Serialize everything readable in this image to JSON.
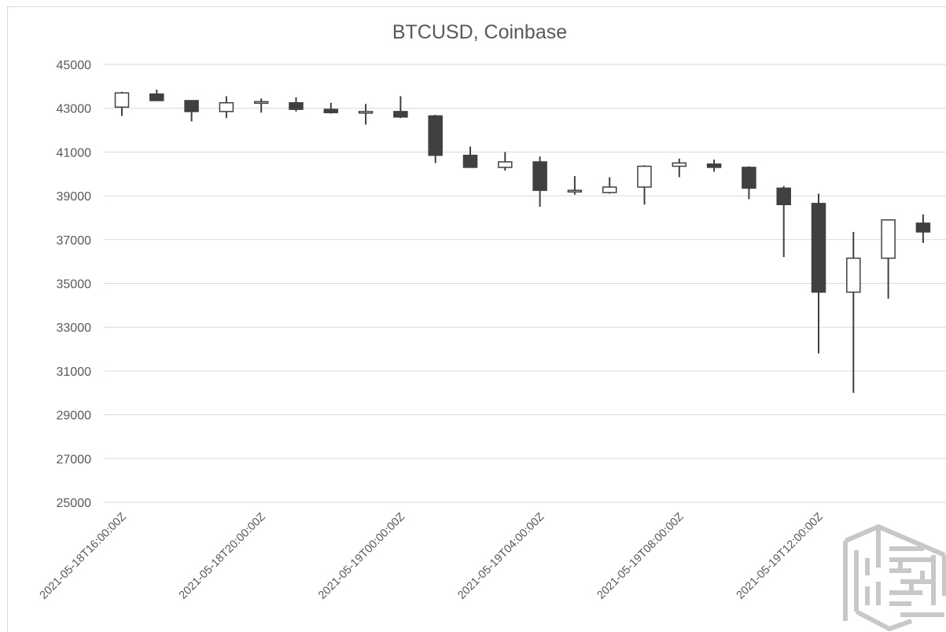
{
  "chart_data": {
    "type": "candlestick",
    "title": "BTCUSD, Coinbase",
    "ylim": [
      25000,
      45000
    ],
    "yticks": [
      25000,
      27000,
      29000,
      31000,
      33000,
      35000,
      37000,
      39000,
      41000,
      43000,
      45000
    ],
    "ytick_labels": [
      "25000",
      "27000",
      "29000",
      "31000",
      "33000",
      "35000",
      "37000",
      "39000",
      "41000",
      "43000",
      "45000"
    ],
    "xtick_labels": [
      {
        "index": 0,
        "label": "2021-05-18T16:00:00Z"
      },
      {
        "index": 4,
        "label": "2021-05-18T20:00:00Z"
      },
      {
        "index": 8,
        "label": "2021-05-19T00:00:00Z"
      },
      {
        "index": 12,
        "label": "2021-05-19T04:00:00Z"
      },
      {
        "index": 16,
        "label": "2021-05-19T08:00:00Z"
      },
      {
        "index": 20,
        "label": "2021-05-19T12:00:00Z"
      }
    ],
    "grid": true,
    "candles": [
      {
        "open": 43050,
        "high": 43750,
        "low": 42650,
        "close": 43700
      },
      {
        "open": 43650,
        "high": 43850,
        "low": 43350,
        "close": 43350
      },
      {
        "open": 43350,
        "high": 43350,
        "low": 42400,
        "close": 42850
      },
      {
        "open": 42850,
        "high": 43550,
        "low": 42550,
        "close": 43250
      },
      {
        "open": 43250,
        "high": 43450,
        "low": 42800,
        "close": 43300
      },
      {
        "open": 43250,
        "high": 43500,
        "low": 42850,
        "close": 42950
      },
      {
        "open": 42950,
        "high": 43250,
        "low": 42750,
        "close": 42800
      },
      {
        "open": 42800,
        "high": 43200,
        "low": 42250,
        "close": 42850
      },
      {
        "open": 42850,
        "high": 43550,
        "low": 42550,
        "close": 42600
      },
      {
        "open": 42650,
        "high": 42700,
        "low": 40500,
        "close": 40850
      },
      {
        "open": 40850,
        "high": 41250,
        "low": 40300,
        "close": 40300
      },
      {
        "open": 40300,
        "high": 41000,
        "low": 40150,
        "close": 40550
      },
      {
        "open": 40550,
        "high": 40800,
        "low": 38500,
        "close": 39250
      },
      {
        "open": 39200,
        "high": 39900,
        "low": 39050,
        "close": 39250
      },
      {
        "open": 39150,
        "high": 39850,
        "low": 39100,
        "close": 39400
      },
      {
        "open": 39400,
        "high": 40400,
        "low": 38600,
        "close": 40350
      },
      {
        "open": 40350,
        "high": 40700,
        "low": 39850,
        "close": 40500
      },
      {
        "open": 40450,
        "high": 40650,
        "low": 40100,
        "close": 40300
      },
      {
        "open": 40300,
        "high": 40350,
        "low": 38850,
        "close": 39350
      },
      {
        "open": 39350,
        "high": 39450,
        "low": 36200,
        "close": 38600
      },
      {
        "open": 38650,
        "high": 39100,
        "low": 31800,
        "close": 34600
      },
      {
        "open": 34600,
        "high": 37350,
        "low": 30000,
        "close": 36150
      },
      {
        "open": 36150,
        "high": 37900,
        "low": 34300,
        "close": 37900
      },
      {
        "open": 37750,
        "high": 38150,
        "low": 36850,
        "close": 37350
      }
    ]
  },
  "colors": {
    "up_fill": "#ffffff",
    "down_fill": "#404040",
    "wick": "#404040",
    "grid": "#d9d9d9",
    "text": "#595959"
  },
  "watermark_icon": "maze-logo-icon"
}
